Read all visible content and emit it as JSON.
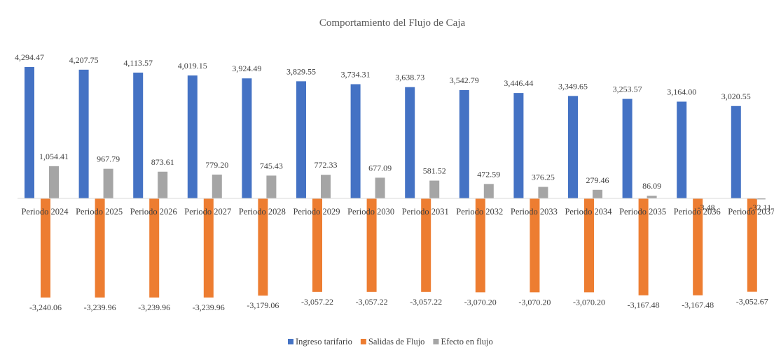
{
  "chart_data": {
    "type": "bar",
    "title": "Comportamiento del Flujo de Caja",
    "categories": [
      "Periodo 2024",
      "Periodo 2025",
      "Periodo 2026",
      "Periodo 2027",
      "Periodo 2028",
      "Periodo 2029",
      "Periodo 2030",
      "Periodo 2031",
      "Periodo 2032",
      "Periodo 2033",
      "Periodo 2034",
      "Periodo 2035",
      "Periodo 2036",
      "Periodo 2037"
    ],
    "series": [
      {
        "name": "Ingreso tarifario",
        "color": "#4472C4",
        "values": [
          4294.47,
          4207.75,
          4113.57,
          4019.15,
          3924.49,
          3829.55,
          3734.31,
          3638.73,
          3542.79,
          3446.44,
          3349.65,
          3253.57,
          3164.0,
          3020.55
        ],
        "labels": [
          "4,294.47",
          "4,207.75",
          "4,113.57",
          "4,019.15",
          "3,924.49",
          "3,829.55",
          "3,734.31",
          "3,638.73",
          "3,542.79",
          "3,446.44",
          "3,349.65",
          "3,253.57",
          "3,164.00",
          "3,020.55"
        ]
      },
      {
        "name": "Salidas de Flujo",
        "color": "#ED7D31",
        "values": [
          -3240.06,
          -3239.96,
          -3239.96,
          -3239.96,
          -3179.06,
          -3057.22,
          -3057.22,
          -3057.22,
          -3070.2,
          -3070.2,
          -3070.2,
          -3167.48,
          -3167.48,
          -3052.67
        ],
        "labels": [
          "-3,240.06",
          "-3,239.96",
          "-3,239.96",
          "-3,239.96",
          "-3,179.06",
          "-3,057.22",
          "-3,057.22",
          "-3,057.22",
          "-3,070.20",
          "-3,070.20",
          "-3,070.20",
          "-3,167.48",
          "-3,167.48",
          "-3,052.67"
        ]
      },
      {
        "name": "Efecto en flujo",
        "color": "#A5A5A5",
        "values": [
          1054.41,
          967.79,
          873.61,
          779.2,
          745.43,
          772.33,
          677.09,
          581.52,
          472.59,
          376.25,
          279.46,
          86.09,
          -3.48,
          -32.11
        ],
        "labels": [
          "1,054.41",
          "967.79",
          "873.61",
          "779.20",
          "745.43",
          "772.33",
          "677.09",
          "581.52",
          "472.59",
          "376.25",
          "279.46",
          "86.09",
          "-3.48",
          "-32.11"
        ]
      }
    ],
    "legend_position": "bottom",
    "grid": false
  }
}
